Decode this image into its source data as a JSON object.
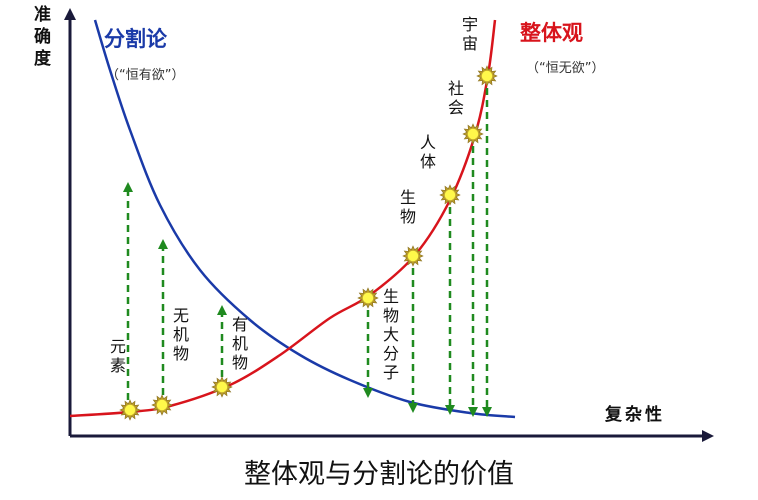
{
  "axes": {
    "y_label": "准确度",
    "x_label": "复杂性"
  },
  "left_curve": {
    "title": "分割论",
    "subtitle": "（“恒有欲”）",
    "color": "#1a3aa8"
  },
  "right_curve": {
    "title": "整体观",
    "subtitle": "（“恒无欲”）",
    "color": "#d8141c"
  },
  "markers": [
    {
      "label": "元素"
    },
    {
      "label": "无机物"
    },
    {
      "label": "有机物"
    },
    {
      "label": "生物大分子"
    },
    {
      "label": "生物"
    },
    {
      "label": "人体"
    },
    {
      "label": "社会"
    },
    {
      "label": "宇宙"
    }
  ],
  "arrow_color": "#1f8a1f",
  "footer_title": "整体观与分割论的价值"
}
